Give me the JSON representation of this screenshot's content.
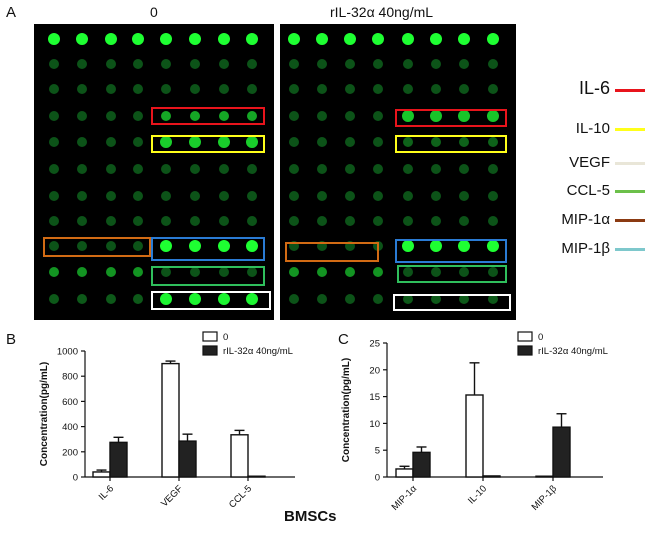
{
  "figure": {
    "panel_letters": {
      "a": "A",
      "b": "B",
      "c": "C"
    },
    "array_titles": {
      "left": "0",
      "right": "rIL-32α  40ng/mL"
    },
    "xlabel": "BMSCs"
  },
  "legend_items": [
    {
      "label": "IL-6",
      "color": "#e8141c"
    },
    {
      "label": "IL-10",
      "color": "#ffff1a"
    },
    {
      "label": "VEGF",
      "color": "#e9e6d8"
    },
    {
      "label": "CCL-5",
      "color": "#6cc04a"
    },
    {
      "label": "MIP-1α",
      "color": "#8b3a12"
    },
    {
      "label": "MIP-1β",
      "color": "#7ec8cc"
    }
  ],
  "array_boxes": {
    "left": [
      {
        "color": "#e8141c"
      },
      {
        "color": "#ffff1a"
      },
      {
        "color": "#d26b14"
      },
      {
        "color": "#2a7bd4"
      },
      {
        "color": "#2fbf5c"
      },
      {
        "color": "#ffffff"
      }
    ],
    "right": [
      {
        "color": "#e8141c"
      },
      {
        "color": "#ffff1a"
      },
      {
        "color": "#d26b14"
      },
      {
        "color": "#2a7bd4"
      },
      {
        "color": "#2fbf5c"
      },
      {
        "color": "#ffffff"
      }
    ]
  },
  "chart_data": [
    {
      "type": "bar",
      "panel": "B",
      "categories": [
        "IL-6",
        "VEGF",
        "CCL-5"
      ],
      "series": [
        {
          "name": "0",
          "values": [
            40,
            900,
            335
          ],
          "errors": [
            15,
            20,
            35
          ],
          "fill": "#ffffff"
        },
        {
          "name": "rIL-32α  40ng/mL",
          "values": [
            275,
            285,
            5
          ],
          "errors": [
            40,
            55,
            0
          ],
          "fill": "#222222"
        }
      ],
      "ylabel": "Concentration(pg/mL)",
      "ylim": [
        0,
        1000
      ],
      "yticks": [
        "0",
        "200",
        "400",
        "600",
        "800",
        "1000"
      ],
      "grid": false,
      "legend": "top-right"
    },
    {
      "type": "bar",
      "panel": "C",
      "categories": [
        "MIP-1α",
        "IL-10",
        "MIP-1β"
      ],
      "series": [
        {
          "name": "0",
          "values": [
            1.5,
            15.3,
            0
          ],
          "errors": [
            0.5,
            6.0,
            0
          ],
          "fill": "#ffffff"
        },
        {
          "name": "rIL-32α  40ng/mL",
          "values": [
            4.6,
            0.2,
            9.3
          ],
          "errors": [
            1.0,
            0,
            2.5
          ],
          "fill": "#222222"
        }
      ],
      "ylabel": "Concentration(pg/mL)",
      "ylim": [
        0,
        25
      ],
      "yticks": [
        "0",
        "5",
        "10",
        "15",
        "20",
        "25"
      ],
      "grid": false,
      "legend": "top-right"
    }
  ]
}
